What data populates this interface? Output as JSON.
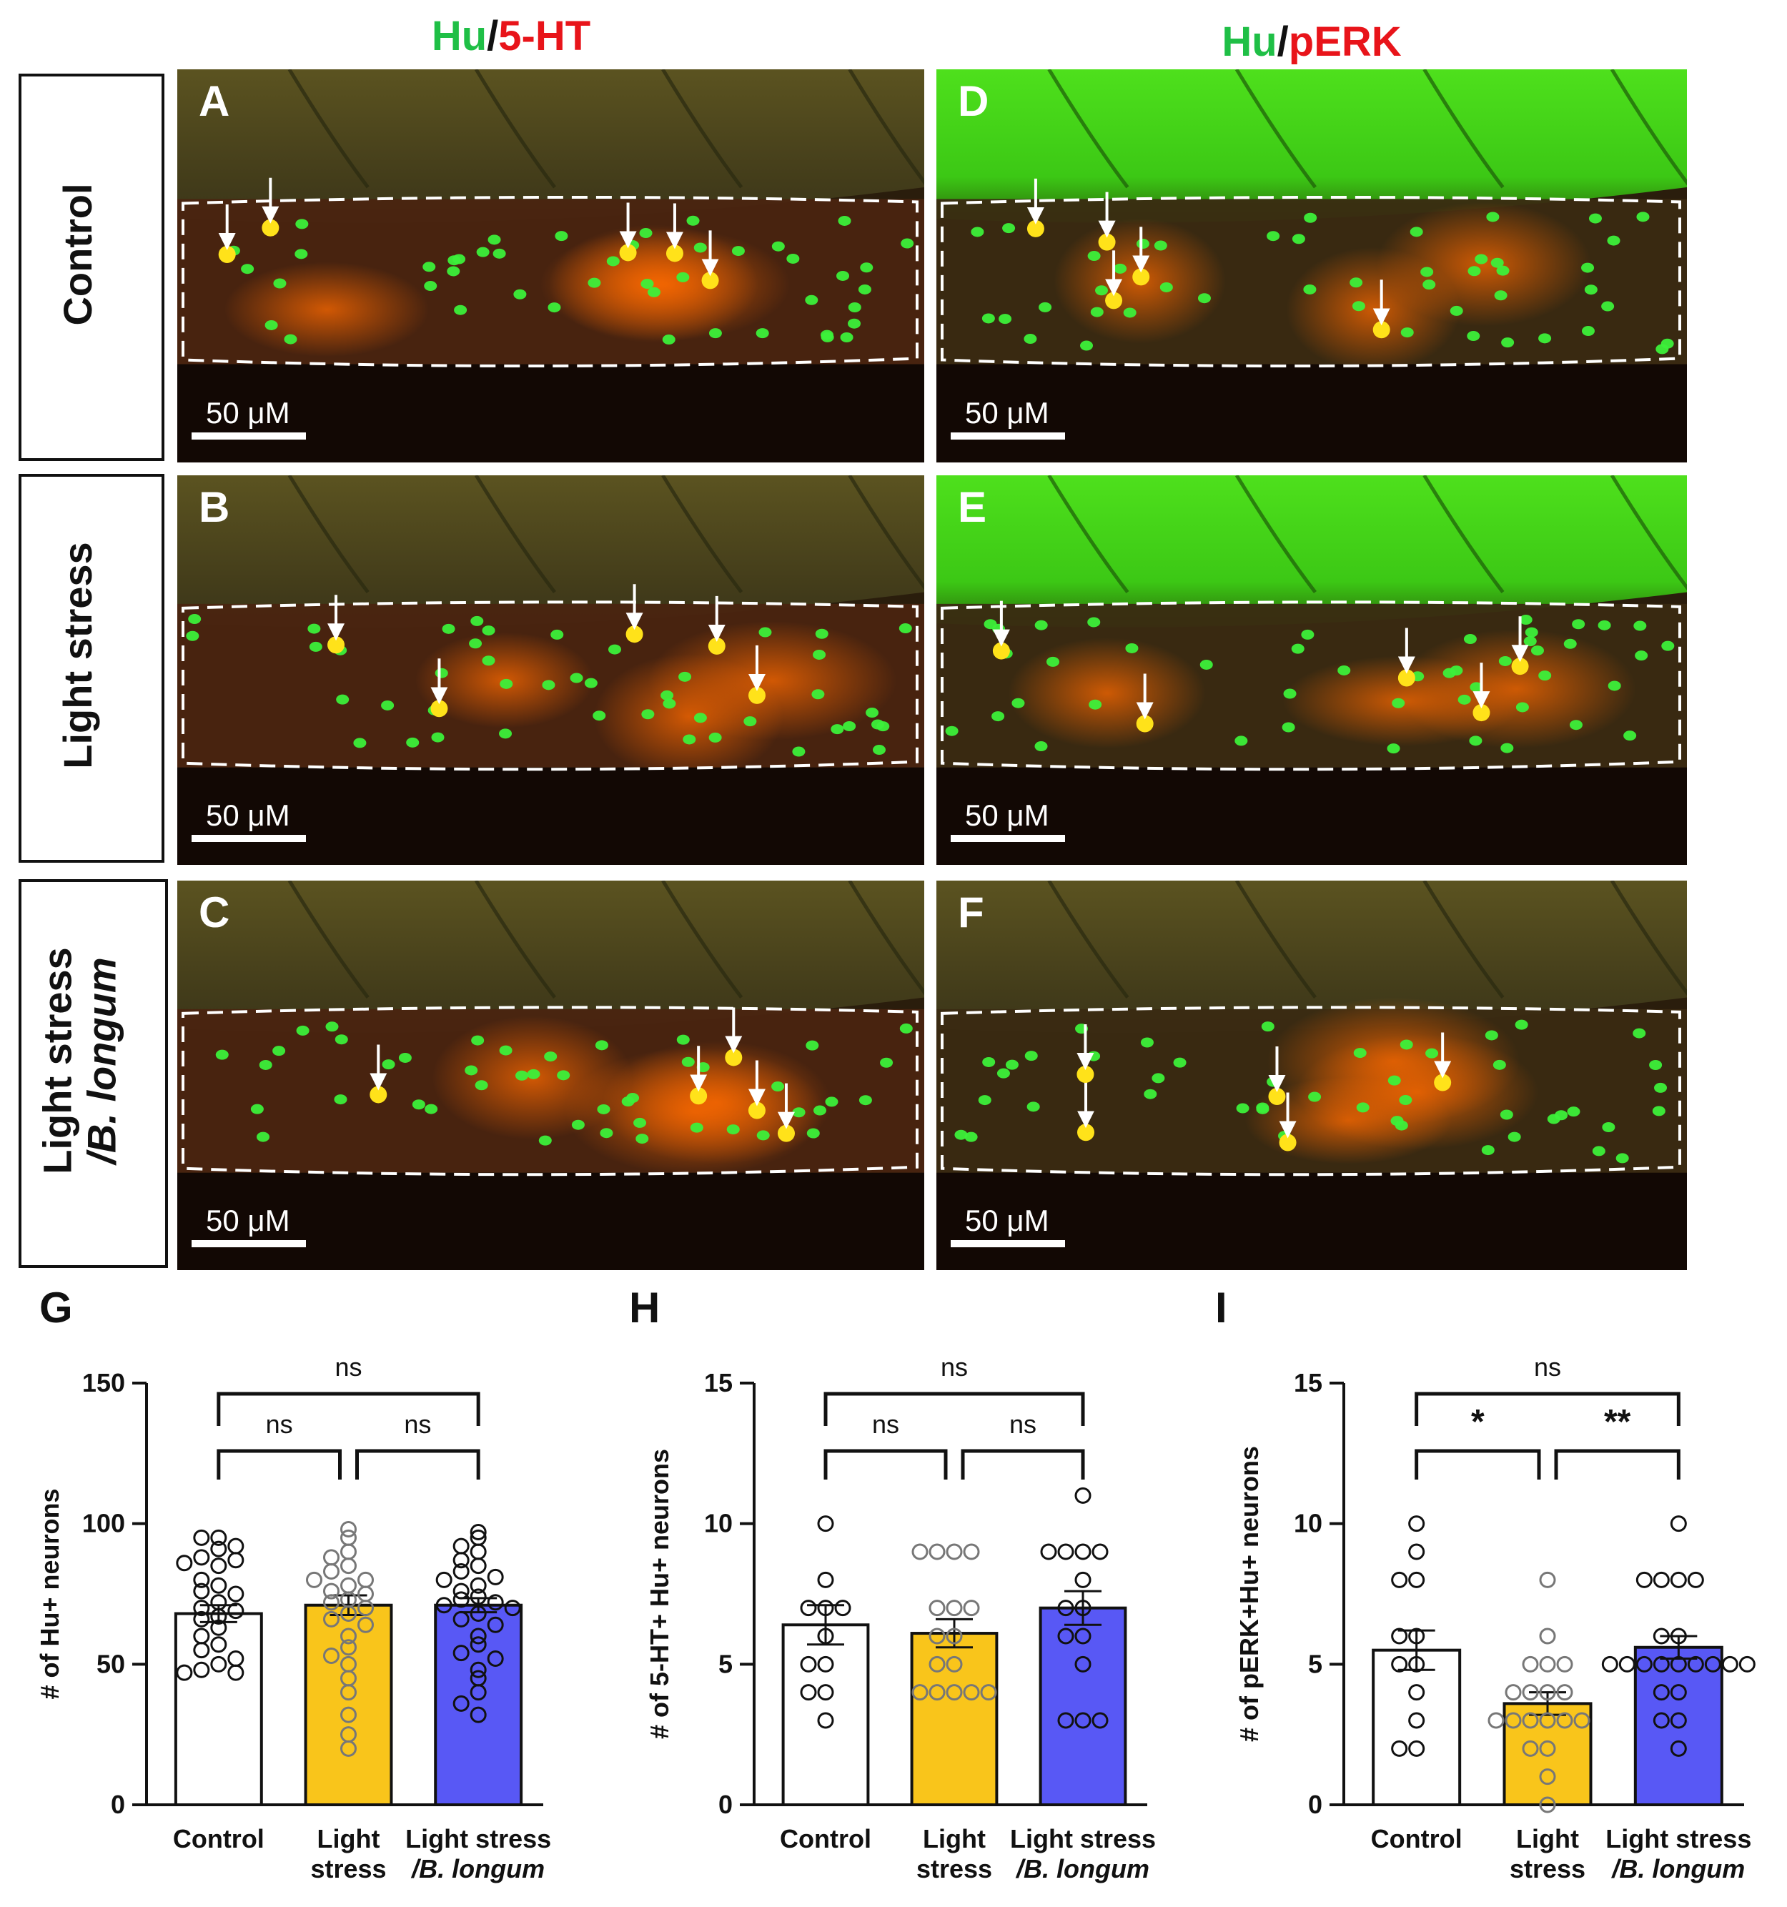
{
  "column_titles": [
    {
      "green": "Hu",
      "sep": "/",
      "red": "5-HT"
    },
    {
      "green": "Hu",
      "sep": "/",
      "red": "pERK"
    }
  ],
  "row_labels": [
    {
      "lines": [
        "Control"
      ]
    },
    {
      "lines": [
        "Light stress"
      ]
    },
    {
      "lines": [
        "Light stress",
        "/B. longum"
      ]
    }
  ],
  "panels": [
    {
      "letter": "A",
      "scale": "50 μM",
      "kind": "serotonin"
    },
    {
      "letter": "D",
      "scale": "50 μM",
      "kind": "perk"
    },
    {
      "letter": "B",
      "scale": "50 μM",
      "kind": "serotonin"
    },
    {
      "letter": "E",
      "scale": "50 μM",
      "kind": "perk"
    },
    {
      "letter": "C",
      "scale": "50 μM",
      "kind": "serotonin"
    },
    {
      "letter": "F",
      "scale": "50 μM",
      "kind": "perk"
    }
  ],
  "colors": {
    "control": "#ffffff",
    "light_stress": "#f9c51b",
    "b_longum": "#5858f5",
    "hu_green": "#1fbf46",
    "red_label": "#e8141a"
  },
  "chart_data": [
    {
      "type": "bar",
      "panel": "G",
      "title": "",
      "ylabel": "# of Hu+ neurons",
      "ylim": [
        0,
        150
      ],
      "yticks": [
        0,
        50,
        100,
        150
      ],
      "categories": [
        [
          "Control"
        ],
        [
          "Light",
          "stress"
        ],
        [
          "Light stress",
          "/B. longum"
        ]
      ],
      "means": [
        68,
        71,
        71
      ],
      "sem": [
        3,
        3.5,
        2.5
      ],
      "points": [
        [
          95,
          95,
          92,
          91,
          88,
          87,
          86,
          85,
          80,
          78,
          76,
          75,
          72,
          70,
          69,
          67,
          66,
          63,
          60,
          57,
          55,
          52,
          50,
          48,
          47,
          47
        ],
        [
          98,
          95,
          90,
          88,
          85,
          83,
          80,
          80,
          78,
          76,
          75,
          73,
          72,
          70,
          68,
          66,
          64,
          60,
          56,
          53,
          50,
          45,
          40,
          32,
          25,
          20
        ],
        [
          97,
          95,
          92,
          90,
          87,
          85,
          83,
          81,
          80,
          78,
          76,
          74,
          73,
          72,
          71,
          70,
          68,
          66,
          64,
          60,
          57,
          54,
          52,
          48,
          45,
          40,
          36,
          32
        ]
      ],
      "comparisons": [
        {
          "from": 0,
          "to": 1,
          "label": "ns",
          "level": 1
        },
        {
          "from": 1,
          "to": 2,
          "label": "ns",
          "level": 1
        },
        {
          "from": 0,
          "to": 2,
          "label": "ns",
          "level": 2
        }
      ]
    },
    {
      "type": "bar",
      "panel": "H",
      "title": "",
      "ylabel": "# of 5-HT+ Hu+ neurons",
      "ylim": [
        0,
        15
      ],
      "yticks": [
        0,
        5,
        10,
        15
      ],
      "categories": [
        [
          "Control"
        ],
        [
          "Light",
          "stress"
        ],
        [
          "Light stress",
          "/B. longum"
        ]
      ],
      "means": [
        6.4,
        6.1,
        7.0
      ],
      "sem": [
        0.7,
        0.5,
        0.6
      ],
      "points": [
        [
          10,
          8,
          7,
          7,
          7,
          6,
          5,
          5,
          4,
          4,
          3
        ],
        [
          9,
          9,
          9,
          9,
          7,
          7,
          7,
          6,
          6,
          5,
          5,
          4,
          4,
          4,
          4,
          4
        ],
        [
          11,
          9,
          9,
          9,
          9,
          8,
          7,
          7,
          6,
          6,
          5,
          3,
          3,
          3
        ]
      ],
      "comparisons": [
        {
          "from": 0,
          "to": 1,
          "label": "ns",
          "level": 1
        },
        {
          "from": 1,
          "to": 2,
          "label": "ns",
          "level": 1
        },
        {
          "from": 0,
          "to": 2,
          "label": "ns",
          "level": 2
        }
      ]
    },
    {
      "type": "bar",
      "panel": "I",
      "title": "",
      "ylabel": "# of  pERK+Hu+ neurons",
      "ylim": [
        0,
        15
      ],
      "yticks": [
        0,
        5,
        10,
        15
      ],
      "categories": [
        [
          "Control"
        ],
        [
          "Light",
          "stress"
        ],
        [
          "Light stress",
          "/B. longum"
        ]
      ],
      "means": [
        5.5,
        3.6,
        5.6
      ],
      "sem": [
        0.7,
        0.4,
        0.4
      ],
      "points": [
        [
          10,
          9,
          8,
          8,
          6,
          6,
          5,
          5,
          4,
          3,
          2,
          2
        ],
        [
          8,
          6,
          5,
          5,
          5,
          4,
          4,
          4,
          4,
          3,
          3,
          3,
          3,
          3,
          3,
          2,
          2,
          1,
          0
        ],
        [
          10,
          8,
          8,
          8,
          8,
          6,
          6,
          5,
          5,
          5,
          5,
          5,
          5,
          5,
          5,
          5,
          4,
          4,
          3,
          3,
          2
        ]
      ],
      "comparisons": [
        {
          "from": 0,
          "to": 1,
          "label": "*",
          "level": 1
        },
        {
          "from": 1,
          "to": 2,
          "label": "**",
          "level": 1
        },
        {
          "from": 0,
          "to": 2,
          "label": "ns",
          "level": 2
        }
      ]
    }
  ],
  "chart_letters": [
    "G",
    "H",
    "I"
  ]
}
